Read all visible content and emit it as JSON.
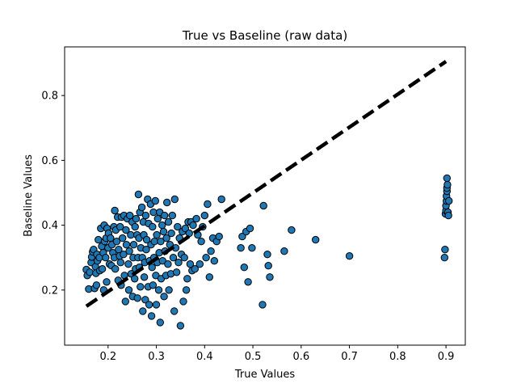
{
  "chart_data": {
    "type": "scatter",
    "title": "True vs Baseline (raw data)",
    "xlabel": "True Values",
    "ylabel": "Baseline Values",
    "xlim": [
      0.11,
      0.94
    ],
    "ylim": [
      0.03,
      0.95
    ],
    "xticks": [
      0.2,
      0.3,
      0.4,
      0.5,
      0.6,
      0.7,
      0.8,
      0.9
    ],
    "xtick_labels": [
      "0.2",
      "0.3",
      "0.4",
      "0.5",
      "0.6",
      "0.7",
      "0.8",
      "0.9"
    ],
    "yticks": [
      0.2,
      0.4,
      0.6,
      0.8
    ],
    "ytick_labels": [
      "0.2",
      "0.4",
      "0.6",
      "0.8"
    ],
    "grid": false,
    "colors": {
      "marker_fill": "#1f77b4",
      "marker_edge": "#000000",
      "reference_line": "#000000"
    },
    "reference_line": {
      "style": "dashed",
      "points": [
        [
          0.155,
          0.15
        ],
        [
          0.9,
          0.905
        ]
      ]
    },
    "points": [
      [
        0.155,
        0.263
      ],
      [
        0.157,
        0.245
      ],
      [
        0.16,
        0.203
      ],
      [
        0.162,
        0.255
      ],
      [
        0.165,
        0.285
      ],
      [
        0.166,
        0.302
      ],
      [
        0.168,
        0.318
      ],
      [
        0.17,
        0.325
      ],
      [
        0.172,
        0.205
      ],
      [
        0.174,
        0.272
      ],
      [
        0.175,
        0.252
      ],
      [
        0.176,
        0.215
      ],
      [
        0.177,
        0.31
      ],
      [
        0.178,
        0.29
      ],
      [
        0.18,
        0.355
      ],
      [
        0.182,
        0.3
      ],
      [
        0.183,
        0.26
      ],
      [
        0.185,
        0.39
      ],
      [
        0.187,
        0.335
      ],
      [
        0.188,
        0.265
      ],
      [
        0.19,
        0.315
      ],
      [
        0.191,
        0.2
      ],
      [
        0.192,
        0.4
      ],
      [
        0.193,
        0.35
      ],
      [
        0.195,
        0.3
      ],
      [
        0.196,
        0.36
      ],
      [
        0.197,
        0.225
      ],
      [
        0.198,
        0.39
      ],
      [
        0.2,
        0.33
      ],
      [
        0.201,
        0.375
      ],
      [
        0.203,
        0.28
      ],
      [
        0.205,
        0.36
      ],
      [
        0.207,
        0.275
      ],
      [
        0.208,
        0.34
      ],
      [
        0.21,
        0.315
      ],
      [
        0.212,
        0.395
      ],
      [
        0.213,
        0.3
      ],
      [
        0.214,
        0.445
      ],
      [
        0.215,
        0.265
      ],
      [
        0.216,
        0.385
      ],
      [
        0.218,
        0.35
      ],
      [
        0.22,
        0.425
      ],
      [
        0.221,
        0.23
      ],
      [
        0.222,
        0.325
      ],
      [
        0.224,
        0.305
      ],
      [
        0.225,
        0.395
      ],
      [
        0.226,
        0.285
      ],
      [
        0.227,
        0.215
      ],
      [
        0.228,
        0.425
      ],
      [
        0.23,
        0.36
      ],
      [
        0.232,
        0.31
      ],
      [
        0.233,
        0.43
      ],
      [
        0.234,
        0.245
      ],
      [
        0.236,
        0.165
      ],
      [
        0.237,
        0.385
      ],
      [
        0.238,
        0.34
      ],
      [
        0.24,
        0.42
      ],
      [
        0.242,
        0.28
      ],
      [
        0.243,
        0.2
      ],
      [
        0.244,
        0.32
      ],
      [
        0.245,
        0.43
      ],
      [
        0.247,
        0.37
      ],
      [
        0.248,
        0.25
      ],
      [
        0.25,
        0.41
      ],
      [
        0.251,
        0.18
      ],
      [
        0.252,
        0.3
      ],
      [
        0.253,
        0.34
      ],
      [
        0.255,
        0.235
      ],
      [
        0.256,
        0.395
      ],
      [
        0.257,
        0.265
      ],
      [
        0.258,
        0.42
      ],
      [
        0.26,
        0.37
      ],
      [
        0.261,
        0.175
      ],
      [
        0.262,
        0.3
      ],
      [
        0.263,
        0.495
      ],
      [
        0.264,
        0.36
      ],
      [
        0.265,
        0.27
      ],
      [
        0.266,
        0.44
      ],
      [
        0.267,
        0.21
      ],
      [
        0.268,
        0.33
      ],
      [
        0.27,
        0.455
      ],
      [
        0.271,
        0.3
      ],
      [
        0.272,
        0.135
      ],
      [
        0.273,
        0.41
      ],
      [
        0.274,
        0.37
      ],
      [
        0.275,
        0.24
      ],
      [
        0.276,
        0.285
      ],
      [
        0.277,
        0.17
      ],
      [
        0.278,
        0.43
      ],
      [
        0.279,
        0.325
      ],
      [
        0.28,
        0.355
      ],
      [
        0.282,
        0.48
      ],
      [
        0.283,
        0.21
      ],
      [
        0.284,
        0.405
      ],
      [
        0.285,
        0.155
      ],
      [
        0.286,
        0.29
      ],
      [
        0.288,
        0.465
      ],
      [
        0.289,
        0.34
      ],
      [
        0.29,
        0.12
      ],
      [
        0.291,
        0.27
      ],
      [
        0.292,
        0.395
      ],
      [
        0.293,
        0.215
      ],
      [
        0.294,
        0.44
      ],
      [
        0.295,
        0.3
      ],
      [
        0.296,
        0.35
      ],
      [
        0.298,
        0.475
      ],
      [
        0.299,
        0.245
      ],
      [
        0.3,
        0.155
      ],
      [
        0.301,
        0.37
      ],
      [
        0.302,
        0.285
      ],
      [
        0.303,
        0.42
      ],
      [
        0.305,
        0.2
      ],
      [
        0.306,
        0.315
      ],
      [
        0.307,
        0.44
      ],
      [
        0.308,
        0.1
      ],
      [
        0.309,
        0.35
      ],
      [
        0.31,
        0.235
      ],
      [
        0.312,
        0.4
      ],
      [
        0.313,
        0.29
      ],
      [
        0.315,
        0.38
      ],
      [
        0.316,
        0.18
      ],
      [
        0.317,
        0.43
      ],
      [
        0.318,
        0.32
      ],
      [
        0.32,
        0.245
      ],
      [
        0.321,
        0.36
      ],
      [
        0.322,
        0.47
      ],
      [
        0.324,
        0.28
      ],
      [
        0.325,
        0.41
      ],
      [
        0.326,
        0.2
      ],
      [
        0.328,
        0.34
      ],
      [
        0.33,
        0.25
      ],
      [
        0.331,
        0.375
      ],
      [
        0.333,
        0.43
      ],
      [
        0.335,
        0.3
      ],
      [
        0.337,
        0.135
      ],
      [
        0.338,
        0.48
      ],
      [
        0.34,
        0.33
      ],
      [
        0.342,
        0.255
      ],
      [
        0.344,
        0.395
      ],
      [
        0.346,
        0.285
      ],
      [
        0.348,
        0.36
      ],
      [
        0.35,
        0.09
      ],
      [
        0.352,
        0.31
      ],
      [
        0.354,
        0.38
      ],
      [
        0.356,
        0.165
      ],
      [
        0.358,
        0.3
      ],
      [
        0.36,
        0.39
      ],
      [
        0.362,
        0.2
      ],
      [
        0.364,
        0.235
      ],
      [
        0.366,
        0.41
      ],
      [
        0.368,
        0.375
      ],
      [
        0.37,
        0.28
      ],
      [
        0.372,
        0.41
      ],
      [
        0.374,
        0.26
      ],
      [
        0.376,
        0.4
      ],
      [
        0.38,
        0.265
      ],
      [
        0.383,
        0.42
      ],
      [
        0.386,
        0.37
      ],
      [
        0.39,
        0.28
      ],
      [
        0.393,
        0.35
      ],
      [
        0.396,
        0.395
      ],
      [
        0.4,
        0.43
      ],
      [
        0.403,
        0.3
      ],
      [
        0.406,
        0.465
      ],
      [
        0.41,
        0.24
      ],
      [
        0.413,
        0.32
      ],
      [
        0.417,
        0.36
      ],
      [
        0.42,
        0.29
      ],
      [
        0.425,
        0.35
      ],
      [
        0.43,
        0.365
      ],
      [
        0.435,
        0.48
      ],
      [
        0.475,
        0.33
      ],
      [
        0.478,
        0.365
      ],
      [
        0.482,
        0.27
      ],
      [
        0.486,
        0.38
      ],
      [
        0.49,
        0.225
      ],
      [
        0.494,
        0.39
      ],
      [
        0.498,
        0.33
      ],
      [
        0.52,
        0.155
      ],
      [
        0.522,
        0.46
      ],
      [
        0.53,
        0.31
      ],
      [
        0.532,
        0.275
      ],
      [
        0.535,
        0.24
      ],
      [
        0.565,
        0.32
      ],
      [
        0.58,
        0.385
      ],
      [
        0.63,
        0.355
      ],
      [
        0.7,
        0.305
      ],
      [
        0.897,
        0.3
      ],
      [
        0.898,
        0.325
      ],
      [
        0.899,
        0.435
      ],
      [
        0.9,
        0.445
      ],
      [
        0.9,
        0.46
      ],
      [
        0.901,
        0.475
      ],
      [
        0.901,
        0.49
      ],
      [
        0.902,
        0.505
      ],
      [
        0.902,
        0.515
      ],
      [
        0.903,
        0.525
      ],
      [
        0.902,
        0.545
      ],
      [
        0.904,
        0.44
      ],
      [
        0.905,
        0.43
      ],
      [
        0.906,
        0.475
      ]
    ]
  }
}
